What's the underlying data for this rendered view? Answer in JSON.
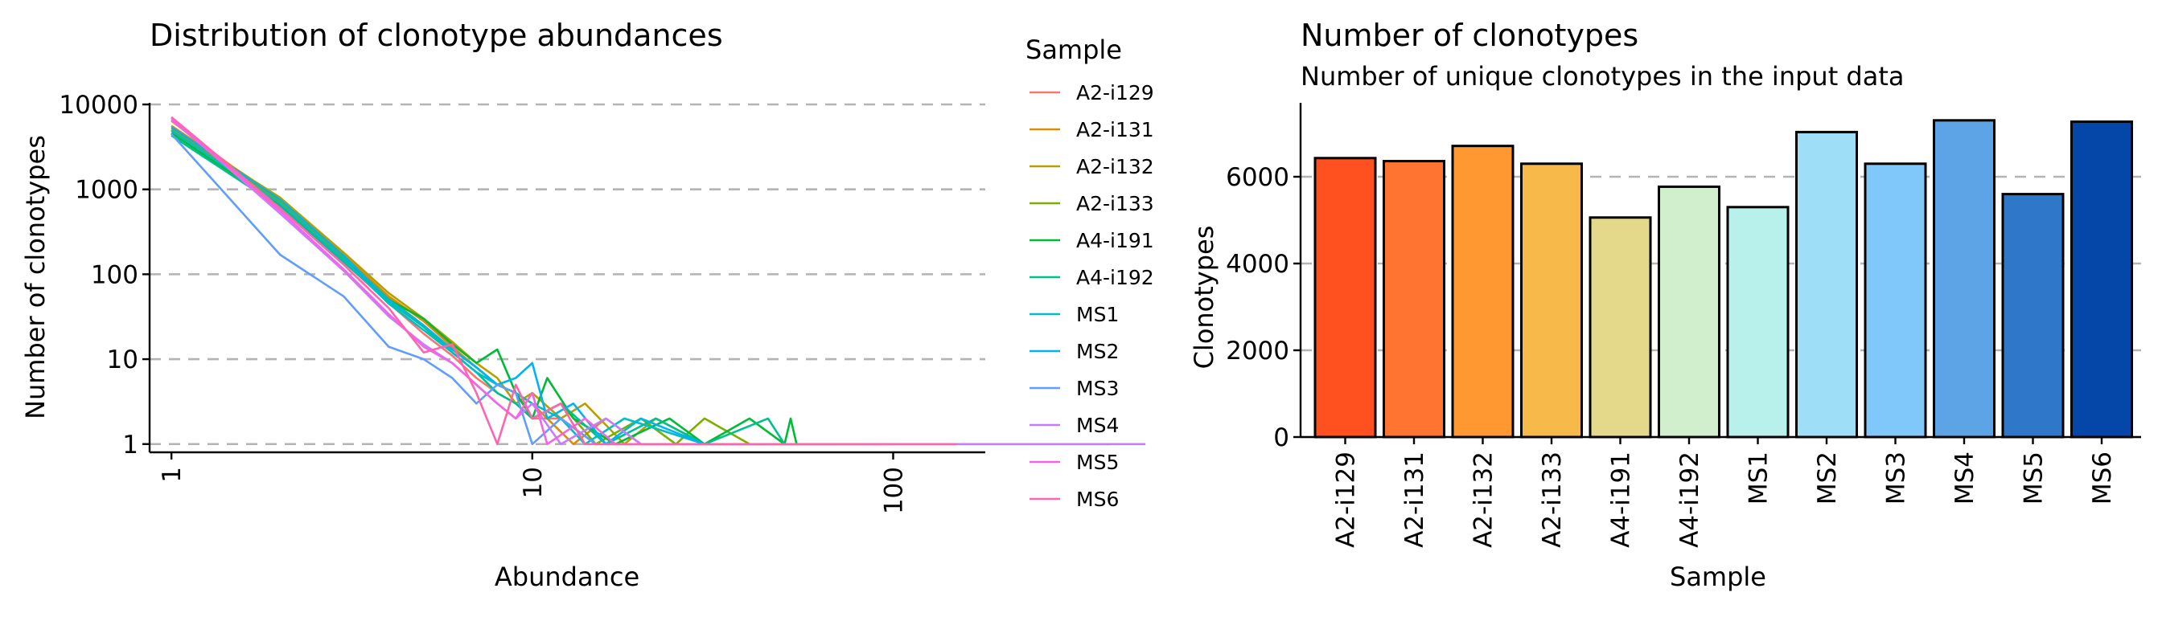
{
  "chart_data": [
    {
      "type": "line",
      "title": "Distribution of clonotype abundances",
      "xlabel": "Abundance",
      "ylabel": "Number of clonotypes",
      "x_scale": "log10",
      "y_scale": "log10",
      "xlim": [
        0.87,
        180
      ],
      "ylim": [
        0.8,
        10000
      ],
      "x_ticks": [
        1,
        10,
        100
      ],
      "x_tick_labels": [
        "1",
        "10",
        "100"
      ],
      "y_ticks": [
        1,
        10,
        100,
        1000,
        10000
      ],
      "y_tick_labels": [
        "1",
        "10",
        "100",
        "1000",
        "10000"
      ],
      "grid": "horizontal dashed",
      "legend_title": "Sample",
      "legend_position": "right",
      "series": [
        {
          "name": "A2-i129",
          "color": "#F8766D",
          "points": [
            [
              1,
              6400
            ],
            [
              2,
              700
            ],
            [
              3,
              140
            ],
            [
              4,
              46
            ],
            [
              5,
              20
            ],
            [
              6,
              11
            ],
            [
              7,
              6
            ],
            [
              8,
              4
            ],
            [
              9,
              3
            ],
            [
              10,
              2
            ],
            [
              12,
              2
            ],
            [
              15,
              1
            ],
            [
              20,
              1
            ],
            [
              60,
              1
            ],
            [
              150,
              1
            ]
          ]
        },
        {
          "name": "A2-i131",
          "color": "#DE8C00",
          "points": [
            [
              1,
              5600
            ],
            [
              2,
              780
            ],
            [
              3,
              170
            ],
            [
              4,
              55
            ],
            [
              5,
              28
            ],
            [
              6,
              14
            ],
            [
              7,
              8
            ],
            [
              8,
              5
            ],
            [
              9,
              4
            ],
            [
              10,
              3
            ],
            [
              11,
              2
            ],
            [
              13,
              1
            ],
            [
              16,
              2
            ],
            [
              20,
              1
            ],
            [
              70,
              1
            ]
          ]
        },
        {
          "name": "A2-i132",
          "color": "#B79F00",
          "points": [
            [
              1,
              5200
            ],
            [
              2,
              800
            ],
            [
              3,
              180
            ],
            [
              4,
              60
            ],
            [
              5,
              30
            ],
            [
              6,
              16
            ],
            [
              7,
              9
            ],
            [
              8,
              6
            ],
            [
              9,
              3
            ],
            [
              10,
              4
            ],
            [
              12,
              2
            ],
            [
              14,
              3
            ],
            [
              18,
              1
            ],
            [
              22,
              2
            ],
            [
              30,
              1
            ],
            [
              80,
              1
            ]
          ]
        },
        {
          "name": "A2-i133",
          "color": "#7CAE00",
          "points": [
            [
              1,
              5000
            ],
            [
              2,
              720
            ],
            [
              3,
              160
            ],
            [
              4,
              52
            ],
            [
              5,
              25
            ],
            [
              6,
              13
            ],
            [
              7,
              8
            ],
            [
              8,
              5
            ],
            [
              9,
              4
            ],
            [
              10,
              2
            ],
            [
              12,
              3
            ],
            [
              15,
              1
            ],
            [
              20,
              2
            ],
            [
              25,
              1
            ],
            [
              30,
              2
            ],
            [
              40,
              1
            ],
            [
              55,
              1
            ]
          ]
        },
        {
          "name": "A4-i191",
          "color": "#00BA38",
          "points": [
            [
              1,
              4600
            ],
            [
              2,
              650
            ],
            [
              3,
              150
            ],
            [
              4,
              50
            ],
            [
              5,
              30
            ],
            [
              6,
              15
            ],
            [
              7,
              9
            ],
            [
              8,
              13
            ],
            [
              9,
              4
            ],
            [
              10,
              2
            ],
            [
              11,
              6
            ],
            [
              13,
              2
            ],
            [
              17,
              1
            ],
            [
              24,
              2
            ],
            [
              30,
              1
            ],
            [
              40,
              2
            ],
            [
              50,
              1
            ],
            [
              52,
              2
            ],
            [
              54,
              1
            ],
            [
              90,
              1
            ]
          ]
        },
        {
          "name": "A4-i192",
          "color": "#00C08B",
          "points": [
            [
              1,
              4300
            ],
            [
              2,
              620
            ],
            [
              3,
              140
            ],
            [
              4,
              48
            ],
            [
              5,
              24
            ],
            [
              6,
              12
            ],
            [
              7,
              7
            ],
            [
              8,
              4
            ],
            [
              9,
              3
            ],
            [
              10,
              2
            ],
            [
              12,
              3
            ],
            [
              16,
              1
            ],
            [
              22,
              2
            ],
            [
              30,
              1
            ],
            [
              45,
              2
            ],
            [
              50,
              1
            ]
          ]
        },
        {
          "name": "MS1",
          "color": "#00BFC4",
          "points": [
            [
              1,
              4900
            ],
            [
              2,
              680
            ],
            [
              3,
              150
            ],
            [
              4,
              45
            ],
            [
              5,
              22
            ],
            [
              6,
              12
            ],
            [
              7,
              7
            ],
            [
              8,
              5
            ],
            [
              9,
              4
            ],
            [
              10,
              3
            ],
            [
              12,
              2
            ],
            [
              14,
              1
            ],
            [
              18,
              2
            ],
            [
              30,
              1
            ],
            [
              60,
              1
            ]
          ]
        },
        {
          "name": "MS2",
          "color": "#00B4F0",
          "points": [
            [
              1,
              5400
            ],
            [
              2,
              760
            ],
            [
              3,
              165
            ],
            [
              4,
              50
            ],
            [
              5,
              25
            ],
            [
              6,
              13
            ],
            [
              7,
              8
            ],
            [
              8,
              5
            ],
            [
              9,
              6
            ],
            [
              10,
              9
            ],
            [
              11,
              2
            ],
            [
              13,
              3
            ],
            [
              16,
              1
            ],
            [
              20,
              2
            ],
            [
              30,
              1
            ],
            [
              45,
              1
            ]
          ]
        },
        {
          "name": "MS3",
          "color": "#619CFF",
          "points": [
            [
              1,
              4500
            ],
            [
              2,
              170
            ],
            [
              3,
              55
            ],
            [
              4,
              14
            ],
            [
              5,
              10
            ],
            [
              6,
              6
            ],
            [
              7,
              3
            ],
            [
              8,
              5
            ],
            [
              9,
              4
            ],
            [
              10,
              1
            ],
            [
              12,
              2
            ],
            [
              15,
              1
            ],
            [
              30,
              1
            ],
            [
              400,
              1
            ]
          ]
        },
        {
          "name": "MS4",
          "color": "#C77CFF",
          "points": [
            [
              1,
              6900
            ],
            [
              2,
              520
            ],
            [
              3,
              110
            ],
            [
              4,
              32
            ],
            [
              5,
              15
            ],
            [
              6,
              9
            ],
            [
              7,
              5
            ],
            [
              8,
              3
            ],
            [
              9,
              2
            ],
            [
              10,
              3
            ],
            [
              12,
              1
            ],
            [
              16,
              2
            ],
            [
              20,
              1
            ],
            [
              90,
              1
            ],
            [
              500,
              1
            ]
          ]
        },
        {
          "name": "MS5",
          "color": "#F564E3",
          "points": [
            [
              1,
              6600
            ],
            [
              2,
              560
            ],
            [
              3,
              115
            ],
            [
              4,
              34
            ],
            [
              5,
              14
            ],
            [
              6,
              9
            ],
            [
              7,
              5
            ],
            [
              8,
              3
            ],
            [
              9,
              2
            ],
            [
              10,
              4
            ],
            [
              11,
              1
            ],
            [
              14,
              2
            ],
            [
              17,
              1
            ],
            [
              35,
              1
            ],
            [
              100,
              1
            ]
          ]
        },
        {
          "name": "MS6",
          "color": "#FF64B0",
          "points": [
            [
              1,
              7100
            ],
            [
              2,
              600
            ],
            [
              3,
              130
            ],
            [
              4,
              40
            ],
            [
              5,
              12
            ],
            [
              6,
              15
            ],
            [
              7,
              4
            ],
            [
              8,
              1
            ],
            [
              9,
              5
            ],
            [
              10,
              2
            ],
            [
              12,
              3
            ],
            [
              14,
              1
            ],
            [
              20,
              1
            ],
            [
              55,
              1
            ],
            [
              150,
              1
            ]
          ]
        }
      ]
    },
    {
      "type": "bar",
      "title": "Number of clonotypes",
      "subtitle": "Number of unique clonotypes in the input data",
      "xlabel": "Sample",
      "ylabel": "Clonotypes",
      "ylim": [
        0,
        7600
      ],
      "y_ticks": [
        0,
        2000,
        4000,
        6000
      ],
      "y_tick_labels": [
        "0",
        "2000",
        "4000",
        "6000"
      ],
      "grid": "horizontal dashed",
      "categories": [
        "A2-i129",
        "A2-i131",
        "A2-i132",
        "A2-i133",
        "A4-i191",
        "A4-i192",
        "MS1",
        "MS2",
        "MS3",
        "MS4",
        "MS5",
        "MS6"
      ],
      "values": [
        6430,
        6360,
        6710,
        6300,
        5060,
        5770,
        5300,
        7030,
        6300,
        7300,
        5600,
        7270
      ],
      "colors": [
        "#FF5020",
        "#FF7430",
        "#FF9830",
        "#F7BA4A",
        "#E4D88A",
        "#D2EFCD",
        "#B8F0EB",
        "#9FDEF7",
        "#80C8FA",
        "#5CA4E6",
        "#2F78C9",
        "#0547A8"
      ]
    }
  ]
}
